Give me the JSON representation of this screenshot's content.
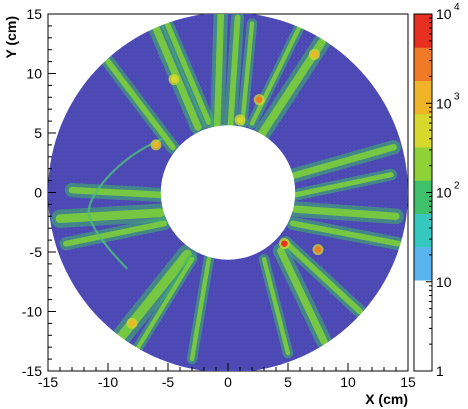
{
  "chart_data": {
    "type": "heatmap",
    "xlabel": "X (cm)",
    "ylabel": "Y (cm)",
    "xlim": [
      -15,
      15
    ],
    "ylim": [
      -15,
      15
    ],
    "x_ticks": [
      "-15",
      "-10",
      "-5",
      "0",
      "5",
      "10",
      "15"
    ],
    "y_ticks": [
      "-15",
      "-10",
      "-5",
      "0",
      "5",
      "10",
      "15"
    ],
    "detector": {
      "inner_radius": 5.6,
      "outer_radius": 15.0
    },
    "colorbar": {
      "scale": "log",
      "range": [
        1,
        10000
      ],
      "labels": [
        {
          "base": "1",
          "exp": ""
        },
        {
          "base": "10",
          "exp": ""
        },
        {
          "base": "10",
          "exp": "2"
        },
        {
          "base": "10",
          "exp": "3"
        },
        {
          "base": "10",
          "exp": "4"
        }
      ],
      "colors": [
        "#5ab4ee",
        "#34c8c0",
        "#3fc06a",
        "#8ed238",
        "#d6d82c",
        "#f0b428",
        "#f07a26",
        "#e83020"
      ]
    },
    "background_color": "#4b47b3",
    "tracks": [
      {
        "x1": -6.5,
        "y1": 15.0,
        "x2": -2.5,
        "y2": 5.5,
        "weight": 2.0
      },
      {
        "x1": -5.2,
        "y1": 14.5,
        "x2": -1.6,
        "y2": 5.9,
        "weight": 1.5
      },
      {
        "x1": -0.6,
        "y1": 15.0,
        "x2": -0.9,
        "y2": 5.6,
        "weight": 1.8
      },
      {
        "x1": 0.8,
        "y1": 14.7,
        "x2": 0.2,
        "y2": 5.6,
        "weight": 1.6
      },
      {
        "x1": 2.0,
        "y1": 14.2,
        "x2": 1.2,
        "y2": 5.8,
        "weight": 1.2
      },
      {
        "x1": 7.8,
        "y1": 12.6,
        "x2": 2.8,
        "y2": 4.9,
        "weight": 2.2
      },
      {
        "x1": -10.0,
        "y1": 11.0,
        "x2": -4.6,
        "y2": 3.8,
        "weight": 1.6
      },
      {
        "x1": -13.0,
        "y1": 0.2,
        "x2": -5.6,
        "y2": -0.2,
        "weight": 1.8
      },
      {
        "x1": -14.0,
        "y1": -2.2,
        "x2": -5.6,
        "y2": -1.7,
        "weight": 2.4
      },
      {
        "x1": -13.5,
        "y1": -4.3,
        "x2": -5.3,
        "y2": -2.6,
        "weight": 1.6
      },
      {
        "x1": 13.8,
        "y1": 3.8,
        "x2": 5.4,
        "y2": 1.4,
        "weight": 1.8
      },
      {
        "x1": 13.6,
        "y1": 1.5,
        "x2": 5.6,
        "y2": -0.2,
        "weight": 1.4
      },
      {
        "x1": 14.0,
        "y1": -2.0,
        "x2": 5.6,
        "y2": -1.4,
        "weight": 2.0
      },
      {
        "x1": 14.2,
        "y1": -4.3,
        "x2": 5.4,
        "y2": -2.6,
        "weight": 1.6
      },
      {
        "x1": 11.0,
        "y1": -10.0,
        "x2": 4.8,
        "y2": -4.2,
        "weight": 1.6
      },
      {
        "x1": 8.0,
        "y1": -12.5,
        "x2": 4.4,
        "y2": -4.9,
        "weight": 2.0
      },
      {
        "x1": 5.0,
        "y1": -13.5,
        "x2": 3.0,
        "y2": -5.6,
        "weight": 1.2
      },
      {
        "x1": -3.0,
        "y1": -14.0,
        "x2": -1.6,
        "y2": -5.6,
        "weight": 1.2
      },
      {
        "x1": -9.2,
        "y1": -12.5,
        "x2": -3.4,
        "y2": -5.2,
        "weight": 2.6
      },
      {
        "x1": -7.6,
        "y1": -13.2,
        "x2": -3.0,
        "y2": -5.6,
        "weight": 1.2
      },
      {
        "x1": 6.0,
        "y1": 14.0,
        "x2": 2.0,
        "y2": 5.8,
        "weight": 1.2
      }
    ],
    "hotspots": [
      {
        "x": 4.7,
        "y": -4.3,
        "level": 3.9
      },
      {
        "x": 2.6,
        "y": 7.8,
        "level": 3.7
      },
      {
        "x": 7.5,
        "y": -4.8,
        "level": 3.4
      },
      {
        "x": -6.0,
        "y": 4.0,
        "level": 3.1
      },
      {
        "x": -8.0,
        "y": -11.0,
        "level": 3.2
      },
      {
        "x": 7.2,
        "y": 11.6,
        "level": 3.0
      },
      {
        "x": -4.5,
        "y": 9.5,
        "level": 2.8
      },
      {
        "x": 1.0,
        "y": 6.1,
        "level": 2.7
      }
    ]
  }
}
